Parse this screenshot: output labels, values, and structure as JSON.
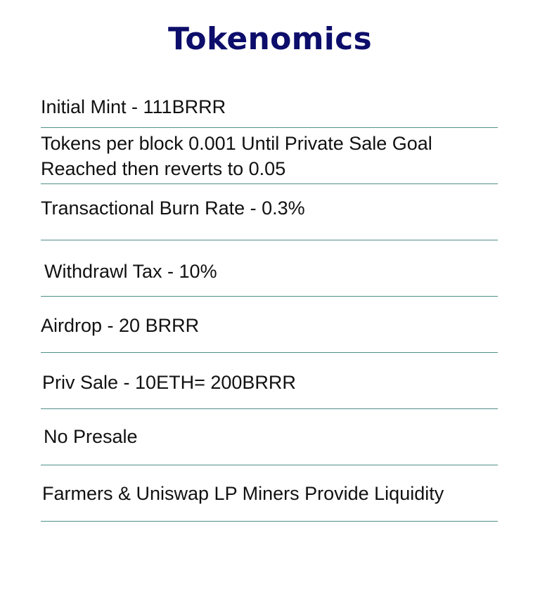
{
  "page": {
    "title": "Tokenomics"
  },
  "items": [
    "Initial Mint - 111BRRR",
    "Tokens per block 0.001 Until Private Sale Goal Reached then reverts to 0.05",
    "Transactional Burn Rate - 0.3%",
    "Withdrawl Tax - 10%",
    "Airdrop - 20 BRRR",
    "Priv Sale - 10ETH= 200BRRR",
    "No Presale",
    "Farmers & Uniswap LP Miners Provide Liquidity"
  ],
  "colors": {
    "title": "#0d0d6b",
    "text": "#111111",
    "divider": "#4f8f8a",
    "background": "#ffffff"
  }
}
